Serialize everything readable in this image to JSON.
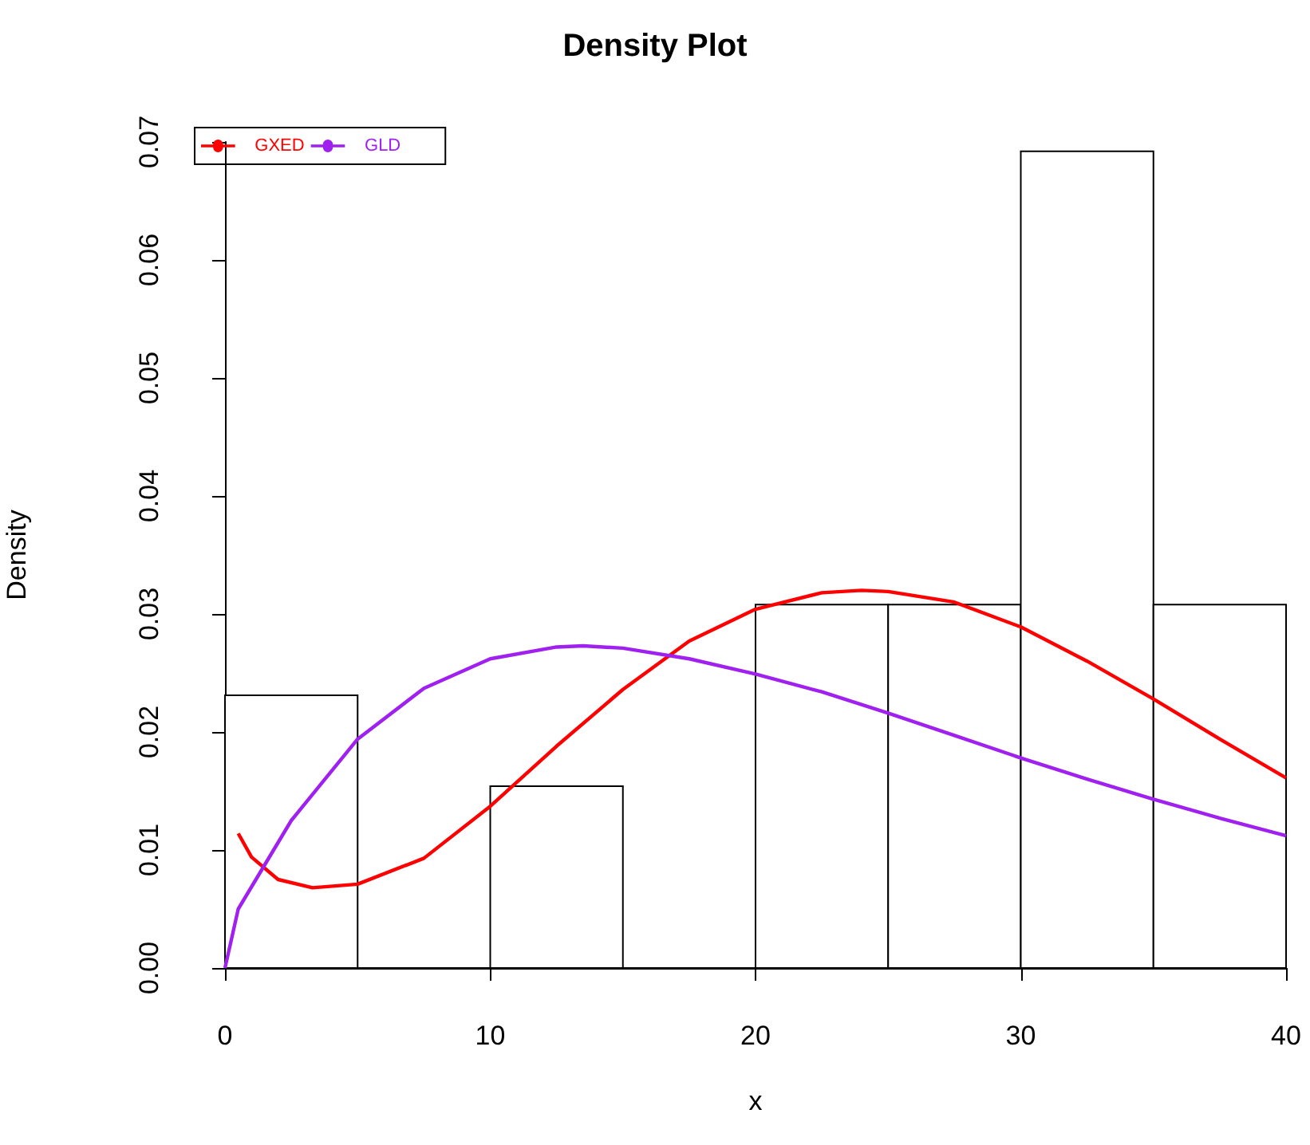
{
  "chart_data": {
    "type": "histogram",
    "title": "Density Plot",
    "xlabel": "x",
    "ylabel": "Density",
    "bins": [
      0,
      5,
      10,
      15,
      20,
      25,
      30,
      35,
      40
    ],
    "values": [
      0.0231,
      0,
      0.0154,
      0,
      0.0308,
      0.0308,
      0.0692,
      0.0308
    ],
    "color": "#ffffff",
    "series": [
      {
        "name": "GXED",
        "type": "line",
        "color": "#ff0000",
        "x": [
          0.5,
          1,
          2,
          3.3,
          5,
          7.5,
          10,
          12.5,
          15,
          17.5,
          20,
          22.5,
          24,
          25,
          27.5,
          30,
          32.5,
          35,
          37.5,
          40
        ],
        "values": [
          0.0114,
          0.0094,
          0.0075,
          0.0068,
          0.0071,
          0.0093,
          0.0137,
          0.0188,
          0.0236,
          0.0277,
          0.0304,
          0.0318,
          0.032,
          0.0319,
          0.031,
          0.0289,
          0.026,
          0.0228,
          0.0194,
          0.0161
        ]
      },
      {
        "name": "GLD",
        "type": "line",
        "color": "#a020f0",
        "x": [
          0,
          0.5,
          2.5,
          5,
          7.5,
          10,
          12.5,
          13.5,
          15,
          17.5,
          20,
          22.5,
          25,
          27.5,
          30,
          32.5,
          35,
          37.5,
          40
        ],
        "values": [
          0,
          0.005,
          0.0125,
          0.0194,
          0.0237,
          0.0262,
          0.0272,
          0.0273,
          0.0271,
          0.0262,
          0.0249,
          0.0234,
          0.0216,
          0.0197,
          0.0178,
          0.016,
          0.0143,
          0.0127,
          0.0112
        ]
      }
    ],
    "xlim": [
      0,
      40
    ],
    "xticks": [
      0,
      10,
      20,
      30,
      40
    ],
    "ylim": [
      0,
      0.07
    ],
    "yticks": [
      {
        "value": 0,
        "label": "0.00"
      },
      0.01,
      0.02,
      0.03,
      0.04,
      0.05,
      0.06,
      0.07
    ],
    "legend": "top left",
    "grid": false
  }
}
